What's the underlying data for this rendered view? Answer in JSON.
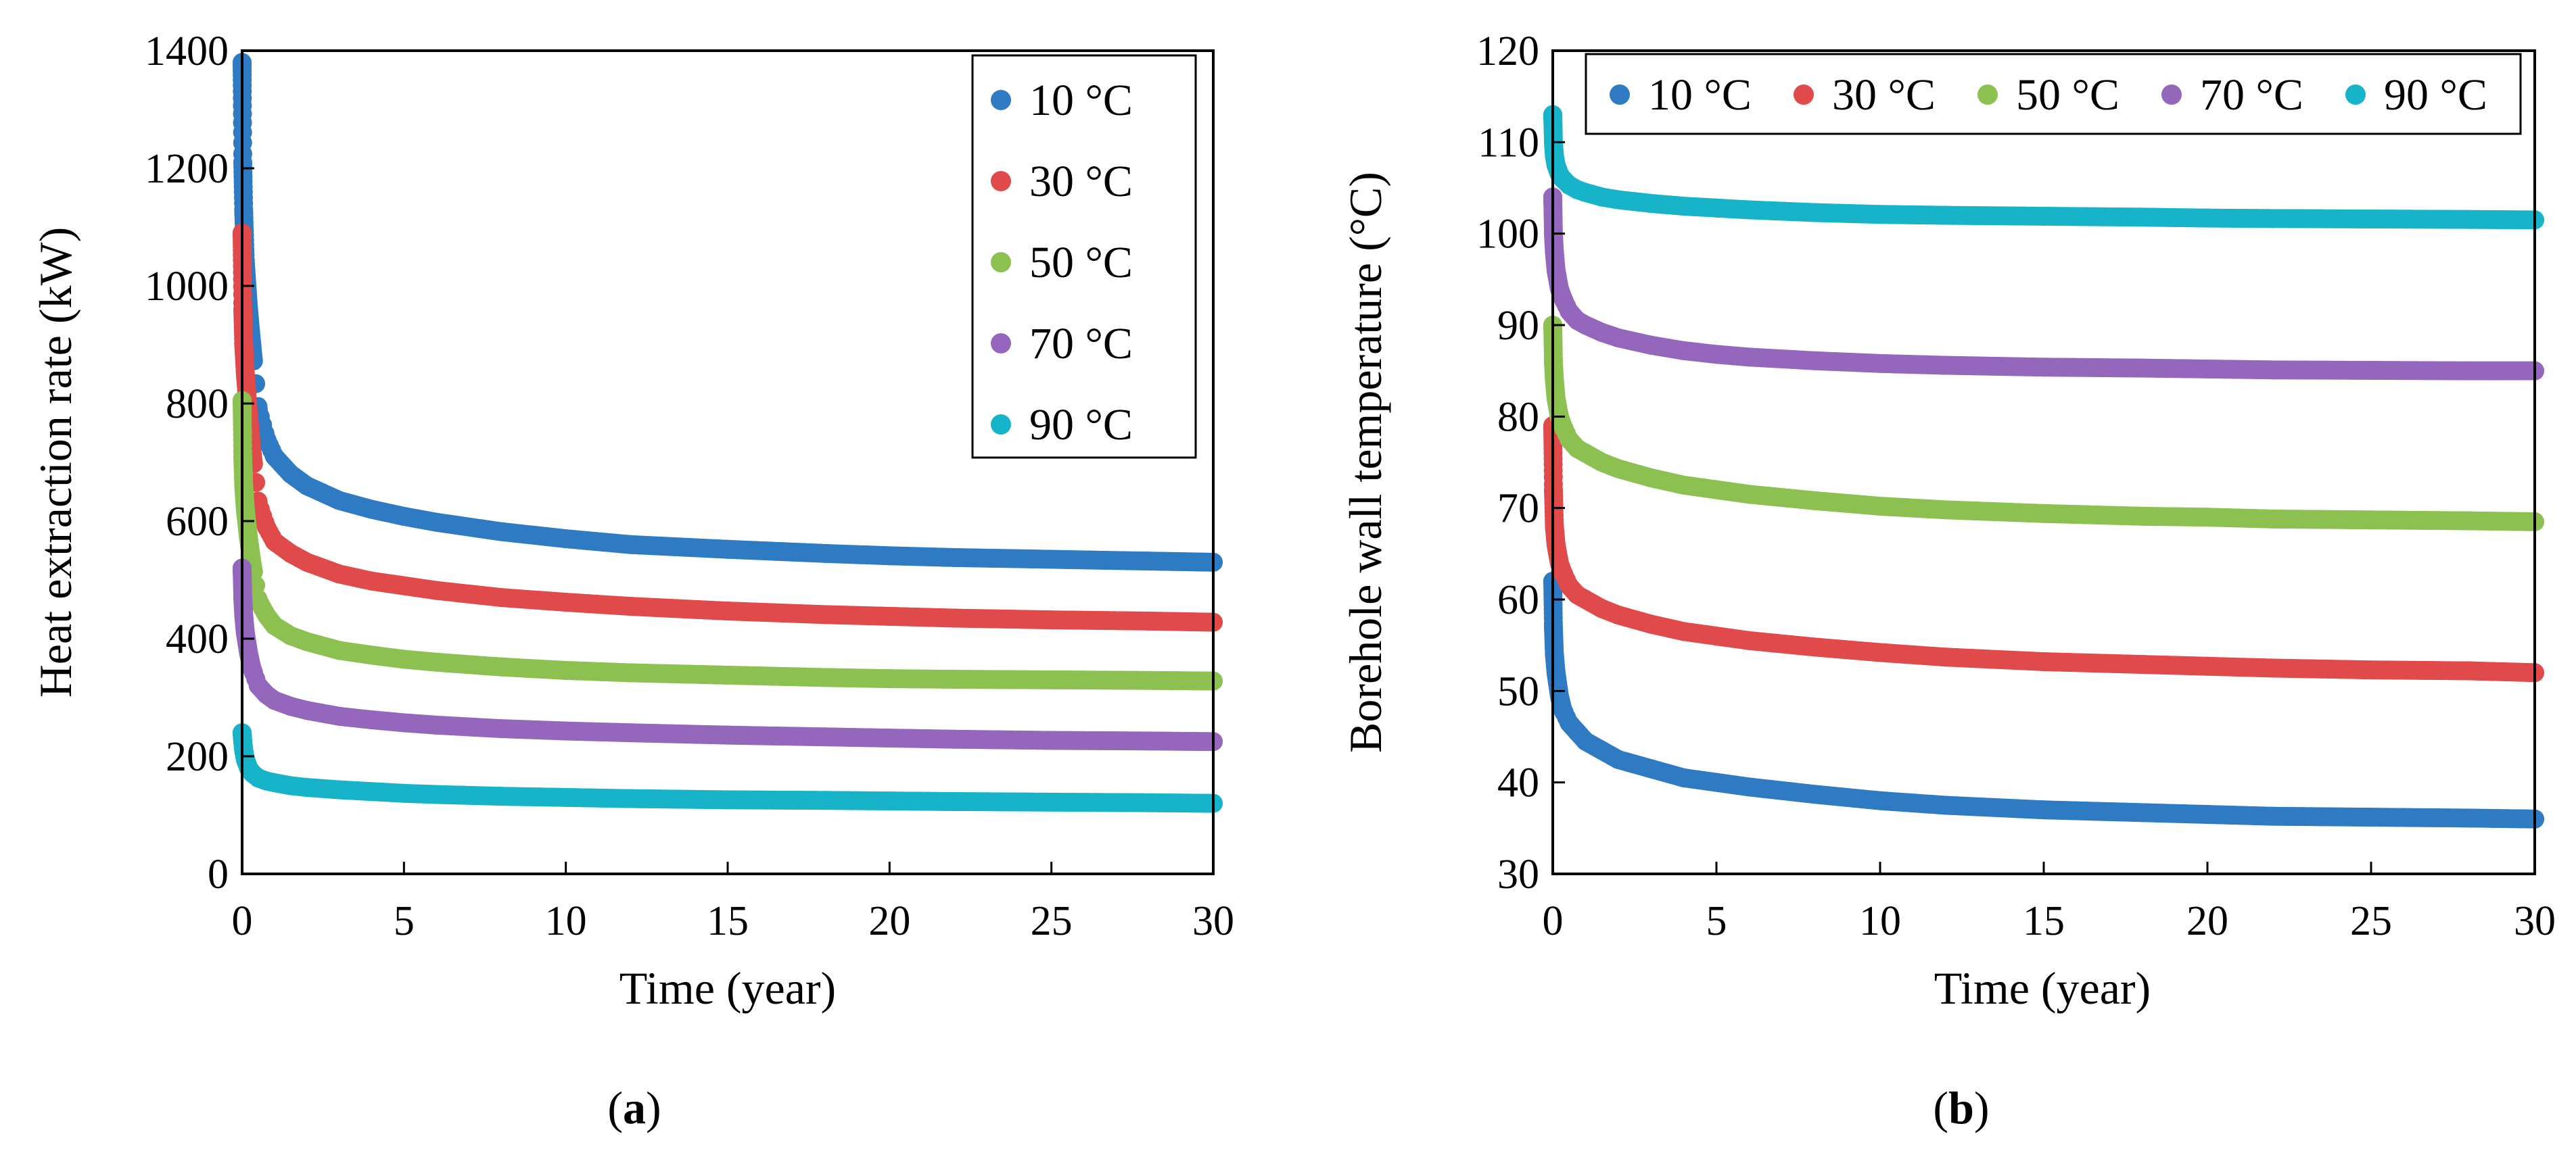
{
  "chart_data": [
    {
      "type": "scatter",
      "panel_label": "(a)",
      "panel_letter": "a",
      "title": "",
      "xlabel": "Time (year)",
      "ylabel": "Heat extraction rate (kW)",
      "xlim": [
        0,
        30
      ],
      "ylim": [
        0,
        1400
      ],
      "xticks": [
        0,
        5,
        10,
        15,
        20,
        25,
        30
      ],
      "yticks": [
        0,
        200,
        400,
        600,
        800,
        1000,
        1200,
        1400
      ],
      "legend_position": "top-right",
      "legend_layout": "vertical",
      "grid": false,
      "series": [
        {
          "name": "10 °C",
          "color": "#2e7bc4",
          "initial": 1380,
          "final": 530,
          "x": [
            0,
            0.02,
            0.05,
            0.1,
            0.2,
            0.3,
            0.5,
            0.75,
            1,
            1.5,
            2,
            3,
            4,
            5,
            6,
            8,
            10,
            12,
            15,
            18,
            20,
            22,
            25,
            28,
            30
          ],
          "y": [
            1380,
            1210,
            1125,
            1040,
            960,
            900,
            790,
            740,
            710,
            680,
            660,
            635,
            620,
            608,
            598,
            582,
            570,
            560,
            552,
            545,
            541,
            538,
            535,
            532,
            530
          ]
        },
        {
          "name": "30 °C",
          "color": "#e04a4a",
          "initial": 1090,
          "final": 428,
          "x": [
            0,
            0.02,
            0.05,
            0.1,
            0.2,
            0.3,
            0.5,
            0.75,
            1,
            1.5,
            2,
            3,
            4,
            5,
            6,
            8,
            10,
            12,
            15,
            18,
            20,
            22,
            25,
            28,
            30
          ],
          "y": [
            1090,
            960,
            900,
            850,
            780,
            720,
            630,
            590,
            565,
            545,
            530,
            510,
            498,
            490,
            482,
            470,
            462,
            455,
            447,
            441,
            438,
            435,
            432,
            430,
            428
          ]
        },
        {
          "name": "50 °C",
          "color": "#8cc152",
          "initial": 805,
          "final": 328,
          "x": [
            0,
            0.02,
            0.05,
            0.1,
            0.2,
            0.3,
            0.5,
            0.75,
            1,
            1.5,
            2,
            3,
            4,
            5,
            6,
            8,
            10,
            12,
            15,
            18,
            20,
            22,
            25,
            28,
            30
          ],
          "y": [
            805,
            710,
            660,
            620,
            570,
            530,
            465,
            440,
            422,
            405,
            395,
            380,
            372,
            365,
            360,
            352,
            346,
            342,
            338,
            334,
            332,
            331,
            330,
            329,
            328
          ]
        },
        {
          "name": "70 °C",
          "color": "#9467bd",
          "initial": 520,
          "final": 225,
          "x": [
            0,
            0.02,
            0.05,
            0.1,
            0.2,
            0.3,
            0.5,
            0.75,
            1,
            1.5,
            2,
            3,
            4,
            5,
            6,
            8,
            10,
            12,
            15,
            18,
            20,
            22,
            25,
            28,
            30
          ],
          "y": [
            520,
            470,
            440,
            410,
            375,
            350,
            320,
            305,
            295,
            285,
            278,
            268,
            262,
            257,
            253,
            247,
            243,
            240,
            236,
            233,
            231,
            229,
            227,
            226,
            225
          ]
        },
        {
          "name": "90 °C",
          "color": "#17b3c8",
          "initial": 240,
          "final": 120,
          "x": [
            0,
            0.02,
            0.05,
            0.1,
            0.2,
            0.3,
            0.5,
            0.75,
            1,
            1.5,
            2,
            3,
            4,
            5,
            6,
            8,
            10,
            12,
            15,
            18,
            20,
            22,
            25,
            28,
            30
          ],
          "y": [
            240,
            225,
            210,
            195,
            180,
            172,
            163,
            158,
            155,
            150,
            147,
            143,
            140,
            137,
            135,
            132,
            130,
            128,
            126,
            125,
            124,
            123,
            122,
            121,
            120
          ]
        }
      ]
    },
    {
      "type": "scatter",
      "panel_label": "(b)",
      "panel_letter": "b",
      "title": "",
      "xlabel": "Time (year)",
      "ylabel": "Borehole wall temperature (°C)",
      "xlim": [
        0,
        30
      ],
      "ylim": [
        30,
        120
      ],
      "xticks": [
        0,
        5,
        10,
        15,
        20,
        25,
        30
      ],
      "yticks": [
        30,
        40,
        50,
        60,
        70,
        80,
        90,
        100,
        110,
        120
      ],
      "legend_position": "top",
      "legend_layout": "horizontal",
      "grid": false,
      "series": [
        {
          "name": "10 °C",
          "color": "#2e7bc4",
          "initial": 62,
          "final": 36,
          "x": [
            0,
            0.02,
            0.05,
            0.1,
            0.2,
            0.3,
            0.5,
            0.75,
            1,
            1.5,
            2,
            3,
            4,
            5,
            6,
            8,
            10,
            12,
            15,
            18,
            20,
            22,
            25,
            28,
            30
          ],
          "y": [
            62,
            57,
            54,
            52,
            49.5,
            48,
            46.5,
            45.5,
            44.5,
            43.5,
            42.5,
            41.5,
            40.5,
            40,
            39.5,
            38.7,
            38,
            37.5,
            37,
            36.7,
            36.5,
            36.3,
            36.2,
            36.1,
            36
          ]
        },
        {
          "name": "30 °C",
          "color": "#e04a4a",
          "initial": 79,
          "final": 52,
          "x": [
            0,
            0.02,
            0.05,
            0.1,
            0.2,
            0.3,
            0.5,
            0.75,
            1,
            1.5,
            2,
            3,
            4,
            5,
            6,
            8,
            10,
            12,
            15,
            18,
            20,
            22,
            25,
            28,
            30
          ],
          "y": [
            79,
            72,
            68,
            66,
            64,
            63,
            61.5,
            60.5,
            60,
            59,
            58.3,
            57.3,
            56.5,
            56,
            55.5,
            54.8,
            54.2,
            53.7,
            53.2,
            52.9,
            52.7,
            52.5,
            52.3,
            52.2,
            52
          ]
        },
        {
          "name": "50 °C",
          "color": "#8cc152",
          "initial": 90,
          "final": 68.5,
          "x": [
            0,
            0.02,
            0.05,
            0.1,
            0.2,
            0.3,
            0.5,
            0.75,
            1,
            1.5,
            2,
            3,
            4,
            5,
            6,
            8,
            10,
            12,
            15,
            18,
            20,
            22,
            25,
            28,
            30
          ],
          "y": [
            90,
            86,
            84,
            82,
            80,
            79,
            77.5,
            76.5,
            76,
            75,
            74.3,
            73.3,
            72.5,
            72,
            71.5,
            70.8,
            70.2,
            69.8,
            69.4,
            69.1,
            69,
            68.8,
            68.7,
            68.6,
            68.5
          ]
        },
        {
          "name": "70 °C",
          "color": "#9467bd",
          "initial": 104,
          "final": 85,
          "x": [
            0,
            0.02,
            0.05,
            0.1,
            0.2,
            0.3,
            0.5,
            0.75,
            1,
            1.5,
            2,
            3,
            4,
            5,
            6,
            8,
            10,
            12,
            15,
            18,
            20,
            22,
            25,
            28,
            30
          ],
          "y": [
            104,
            100,
            98,
            96,
            94,
            93,
            91.5,
            90.5,
            90,
            89.2,
            88.6,
            87.8,
            87.2,
            86.8,
            86.5,
            86.1,
            85.8,
            85.6,
            85.4,
            85.3,
            85.2,
            85.1,
            85.05,
            85,
            85
          ]
        },
        {
          "name": "90 °C",
          "color": "#17b3c8",
          "initial": 113,
          "final": 101.5,
          "x": [
            0,
            0.02,
            0.05,
            0.1,
            0.2,
            0.3,
            0.5,
            0.75,
            1,
            1.5,
            2,
            3,
            4,
            5,
            6,
            8,
            10,
            12,
            15,
            18,
            20,
            22,
            25,
            28,
            30
          ],
          "y": [
            113,
            110,
            108.5,
            107.5,
            106.5,
            106,
            105.3,
            104.8,
            104.5,
            104,
            103.7,
            103.3,
            103,
            102.8,
            102.6,
            102.3,
            102.1,
            102,
            101.9,
            101.8,
            101.7,
            101.65,
            101.6,
            101.55,
            101.5
          ]
        }
      ]
    }
  ]
}
